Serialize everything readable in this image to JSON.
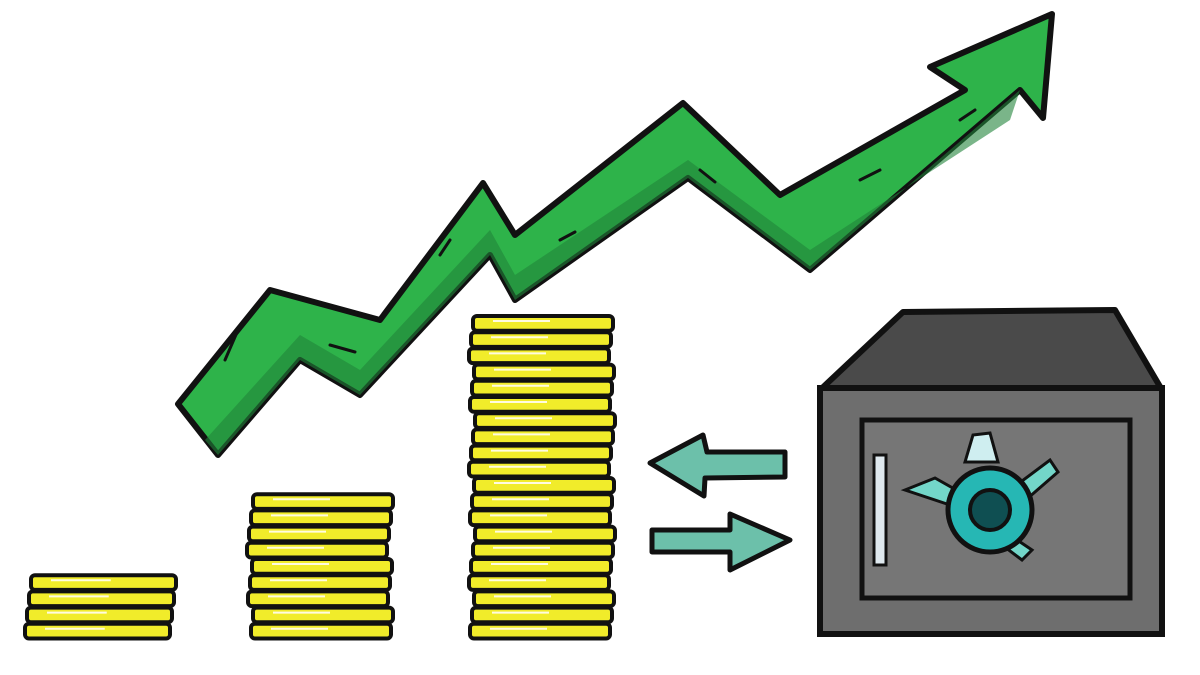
{
  "scene": {
    "subject": "growth-arrow-coin-stacks-and-safe",
    "coin_stacks": [
      {
        "name": "small-stack",
        "coins": 4
      },
      {
        "name": "medium-stack",
        "coins": 9
      },
      {
        "name": "large-stack",
        "coins": 20
      }
    ],
    "arrows": [
      {
        "name": "arrow-to-coins",
        "direction": "left"
      },
      {
        "name": "arrow-to-safe",
        "direction": "right"
      }
    ],
    "colors": {
      "coin_fill": "#f1ec2a",
      "coin_outline": "#111111",
      "arrow_main": "#2eb34a",
      "arrow_shade": "#21843a",
      "transfer_arrow": "#6cc0aa",
      "safe_body": "#6e6e6e",
      "safe_top": "#4a4a4a",
      "safe_dial": "#26b7b4",
      "background": "#ffffff"
    }
  }
}
